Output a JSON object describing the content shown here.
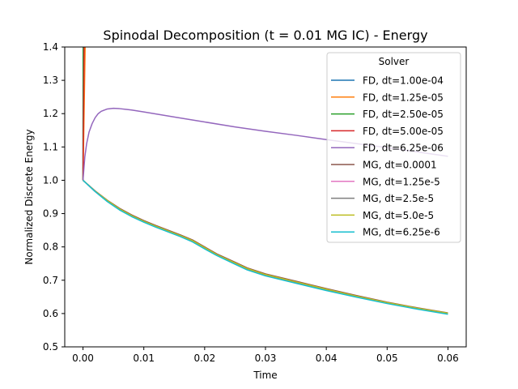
{
  "chart_data": {
    "type": "line",
    "title": "Spinodal Decomposition (t = 0.01 MG IC) - Energy",
    "xlabel": "Time",
    "ylabel": "Normalized Discrete Energy",
    "xlim": [
      -0.003,
      0.063
    ],
    "ylim": [
      0.5,
      1.4
    ],
    "xticks": [
      0.0,
      0.01,
      0.02,
      0.03,
      0.04,
      0.05,
      0.06
    ],
    "xtick_labels": [
      "0.00",
      "0.01",
      "0.02",
      "0.03",
      "0.04",
      "0.05",
      "0.06"
    ],
    "yticks": [
      0.5,
      0.6,
      0.7,
      0.8,
      0.9,
      1.0,
      1.1,
      1.2,
      1.3,
      1.4
    ],
    "ytick_labels": [
      "0.5",
      "0.6",
      "0.7",
      "0.8",
      "0.9",
      "1.0",
      "1.1",
      "1.2",
      "1.3",
      "1.4"
    ],
    "grid": false,
    "legend": {
      "title": "Solver",
      "placement": "top-right"
    },
    "series": [
      {
        "name": "FD, dt=1.00e-04",
        "color": "#1f77b4",
        "x": [
          0.0,
          2e-05
        ],
        "y": [
          1.0,
          1.45
        ]
      },
      {
        "name": "FD, dt=1.25e-05",
        "color": "#ff7f0e",
        "x": [
          0.0,
          0.0004
        ],
        "y": [
          1.0,
          1.45
        ]
      },
      {
        "name": "FD, dt=2.50e-05",
        "color": "#2ca02c",
        "x": [
          0.0,
          5e-05
        ],
        "y": [
          1.0,
          1.45
        ]
      },
      {
        "name": "FD, dt=5.00e-05",
        "color": "#d62728",
        "x": [
          0.0,
          0.0002
        ],
        "y": [
          1.0,
          1.45
        ]
      },
      {
        "name": "FD, dt=6.25e-06",
        "color": "#9467bd",
        "x": [
          0.0,
          0.0003,
          0.0006,
          0.001,
          0.0015,
          0.002,
          0.0025,
          0.003,
          0.004,
          0.005,
          0.006,
          0.007,
          0.008,
          0.01,
          0.015,
          0.02,
          0.025,
          0.03,
          0.035,
          0.04,
          0.045,
          0.05,
          0.055,
          0.06
        ],
        "y": [
          1.0,
          1.07,
          1.11,
          1.145,
          1.17,
          1.188,
          1.2,
          1.207,
          1.214,
          1.216,
          1.215,
          1.213,
          1.211,
          1.205,
          1.19,
          1.175,
          1.16,
          1.147,
          1.135,
          1.122,
          1.11,
          1.098,
          1.085,
          1.072
        ]
      },
      {
        "name": "MG, dt=0.0001",
        "color": "#8c564b",
        "x": [
          0.0,
          0.002,
          0.004,
          0.006,
          0.008,
          0.01,
          0.012,
          0.014,
          0.016,
          0.018,
          0.02,
          0.022,
          0.025,
          0.027,
          0.03,
          0.035,
          0.04,
          0.045,
          0.05,
          0.055,
          0.06
        ],
        "y": [
          1.0,
          0.968,
          0.94,
          0.916,
          0.896,
          0.879,
          0.864,
          0.85,
          0.836,
          0.821,
          0.8,
          0.779,
          0.754,
          0.737,
          0.719,
          0.697,
          0.675,
          0.654,
          0.634,
          0.617,
          0.602
        ]
      },
      {
        "name": "MG, dt=1.25e-5",
        "color": "#e377c2",
        "x": [
          0.0,
          0.002,
          0.004,
          0.006,
          0.008,
          0.01,
          0.012,
          0.014,
          0.016,
          0.018,
          0.02,
          0.022,
          0.025,
          0.027,
          0.03,
          0.035,
          0.04,
          0.045,
          0.05,
          0.055,
          0.06
        ],
        "y": [
          1.0,
          0.966,
          0.937,
          0.912,
          0.892,
          0.875,
          0.86,
          0.846,
          0.832,
          0.816,
          0.795,
          0.775,
          0.749,
          0.732,
          0.714,
          0.692,
          0.67,
          0.65,
          0.631,
          0.614,
          0.599
        ]
      },
      {
        "name": "MG, dt=2.5e-5",
        "color": "#7f7f7f",
        "x": [
          0.0,
          0.002,
          0.004,
          0.006,
          0.008,
          0.01,
          0.012,
          0.014,
          0.016,
          0.018,
          0.02,
          0.022,
          0.025,
          0.027,
          0.03,
          0.035,
          0.04,
          0.045,
          0.05,
          0.055,
          0.06
        ],
        "y": [
          1.0,
          0.967,
          0.938,
          0.913,
          0.893,
          0.876,
          0.861,
          0.847,
          0.833,
          0.817,
          0.796,
          0.776,
          0.75,
          0.733,
          0.715,
          0.693,
          0.671,
          0.651,
          0.632,
          0.615,
          0.6
        ]
      },
      {
        "name": "MG, dt=5.0e-5",
        "color": "#bcbd22",
        "x": [
          0.0,
          0.002,
          0.004,
          0.006,
          0.008,
          0.01,
          0.012,
          0.014,
          0.016,
          0.018,
          0.02,
          0.022,
          0.025,
          0.027,
          0.03,
          0.035,
          0.04,
          0.045,
          0.05,
          0.055,
          0.06
        ],
        "y": [
          1.0,
          0.967,
          0.939,
          0.914,
          0.894,
          0.877,
          0.862,
          0.848,
          0.834,
          0.819,
          0.798,
          0.777,
          0.752,
          0.735,
          0.717,
          0.695,
          0.673,
          0.652,
          0.633,
          0.616,
          0.601
        ]
      },
      {
        "name": "MG, dt=6.25e-6",
        "color": "#17becf",
        "x": [
          0.0,
          0.002,
          0.004,
          0.006,
          0.008,
          0.01,
          0.012,
          0.014,
          0.016,
          0.018,
          0.02,
          0.022,
          0.025,
          0.027,
          0.03,
          0.035,
          0.04,
          0.045,
          0.05,
          0.055,
          0.06
        ],
        "y": [
          1.0,
          0.966,
          0.936,
          0.911,
          0.891,
          0.874,
          0.859,
          0.845,
          0.831,
          0.815,
          0.794,
          0.774,
          0.748,
          0.731,
          0.713,
          0.691,
          0.669,
          0.649,
          0.63,
          0.613,
          0.598
        ]
      }
    ]
  }
}
